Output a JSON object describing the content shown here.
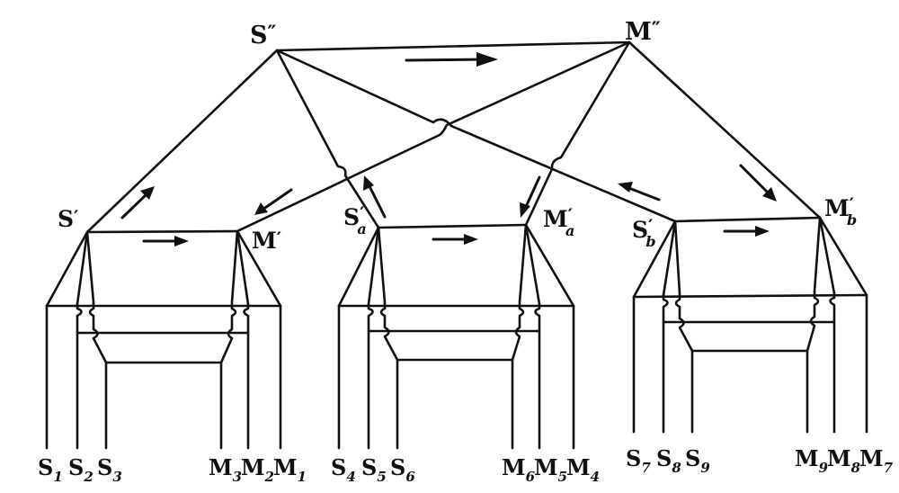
{
  "top": {
    "s": {
      "base": "S",
      "mark": "″"
    },
    "m": {
      "base": "M",
      "mark": "″"
    }
  },
  "units": [
    {
      "s": {
        "base": "S",
        "mark": "′",
        "sub": ""
      },
      "m": {
        "base": "M",
        "mark": "′",
        "sub": ""
      }
    },
    {
      "s": {
        "base": "S",
        "mark": "′",
        "sub": "a"
      },
      "m": {
        "base": "M",
        "mark": "′",
        "sub": "a"
      }
    },
    {
      "s": {
        "base": "S",
        "mark": "′",
        "sub": "b"
      },
      "m": {
        "base": "M",
        "mark": "′",
        "sub": "b"
      }
    }
  ],
  "bottom_labels": [
    {
      "base": "S",
      "sub": "1"
    },
    {
      "base": "S",
      "sub": "2"
    },
    {
      "base": "S",
      "sub": "3"
    },
    {
      "base": "M",
      "sub": "3"
    },
    {
      "base": "M",
      "sub": "2"
    },
    {
      "base": "M",
      "sub": "1"
    },
    {
      "base": "S",
      "sub": "4"
    },
    {
      "base": "S",
      "sub": "5"
    },
    {
      "base": "S",
      "sub": "6"
    },
    {
      "base": "M",
      "sub": "6"
    },
    {
      "base": "M",
      "sub": "5"
    },
    {
      "base": "M",
      "sub": "4"
    },
    {
      "base": "S",
      "sub": "7"
    },
    {
      "base": "S",
      "sub": "8"
    },
    {
      "base": "S",
      "sub": "9"
    },
    {
      "base": "M",
      "sub": "9"
    },
    {
      "base": "M",
      "sub": "8"
    },
    {
      "base": "M",
      "sub": "7"
    }
  ]
}
